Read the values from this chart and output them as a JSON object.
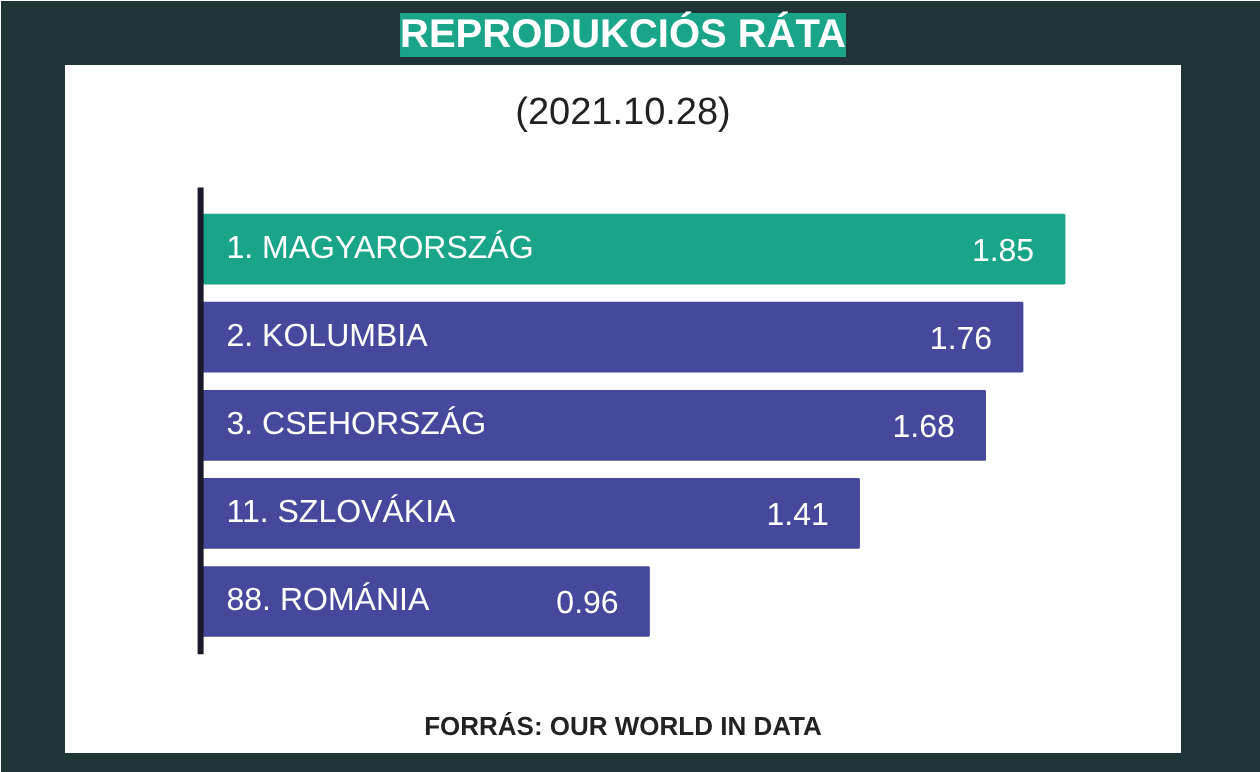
{
  "chart_data": {
    "type": "bar",
    "orientation": "horizontal",
    "title": "REPRODUKCIÓS RÁTA",
    "subtitle": "(2021.10.28)",
    "categories": [
      "1. MAGYARORSZÁG",
      "2. KOLUMBIA",
      "3. CSEHORSZÁG",
      "11. SZLOVÁKIA",
      "88. ROMÁNIA"
    ],
    "values": [
      1.85,
      1.76,
      1.68,
      1.41,
      0.96
    ],
    "colors": [
      "#1aa58a",
      "#46489c",
      "#46489c",
      "#46489c",
      "#46489c"
    ],
    "data_labels": true,
    "annotations": [
      "FORRÁS: OUR WORLD IN DATA"
    ]
  }
}
